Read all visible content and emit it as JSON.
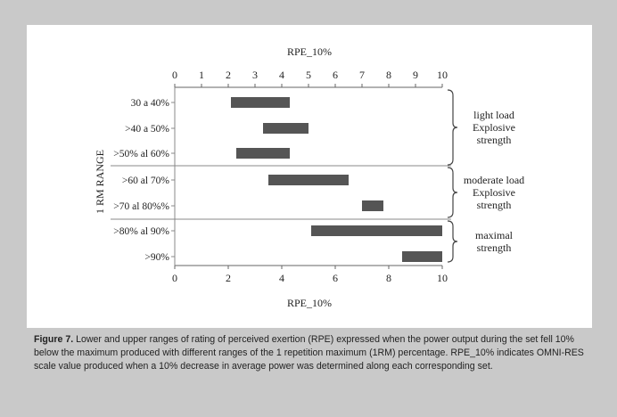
{
  "chart_data": {
    "type": "bar",
    "orientation": "horizontal-floating-range",
    "title_top": "RPE_10%",
    "xlabel_bottom": "RPE_10%",
    "ylabel": "1 RM RANGE",
    "top_axis": {
      "range": [
        0,
        10
      ],
      "ticks": [
        "0",
        "1",
        "2",
        "3",
        "4",
        "5",
        "6",
        "7",
        "8",
        "9",
        "10"
      ]
    },
    "bottom_axis": {
      "range": [
        0,
        10
      ],
      "ticks": [
        "0",
        "2",
        "4",
        "6",
        "8",
        "10"
      ]
    },
    "categories": [
      "30 a 40%",
      ">40 a 50%",
      ">50% al 60%",
      ">60 al 70%",
      ">70 al 80%%",
      ">80% al 90%",
      ">90%"
    ],
    "ranges": [
      [
        2.1,
        4.3
      ],
      [
        3.3,
        5.0
      ],
      [
        2.3,
        4.3
      ],
      [
        3.5,
        6.5
      ],
      [
        7.0,
        7.8
      ],
      [
        5.1,
        10.0
      ],
      [
        8.5,
        10.0
      ]
    ],
    "bar_color": "#555555",
    "groups": [
      {
        "lines": [
          "light load",
          "Explosive",
          "strength"
        ],
        "categories": [
          0,
          1,
          2
        ]
      },
      {
        "lines": [
          "moderate load",
          "Explosive",
          "strength"
        ],
        "categories": [
          3,
          4
        ]
      },
      {
        "lines": [
          "maximal",
          "strength"
        ],
        "categories": [
          5,
          6
        ]
      }
    ],
    "grid": false
  },
  "caption": {
    "label": "Figure 7.",
    "text": "Lower and upper ranges of rating of perceived exertion (RPE) expressed when the power output during the set fell 10% below the maximum produced with different ranges of the 1 repetition maximum (1RM) percentage. RPE_10% indicates OMNI-RES scale value produced when a 10% decrease in average power was determined along each corresponding set."
  }
}
